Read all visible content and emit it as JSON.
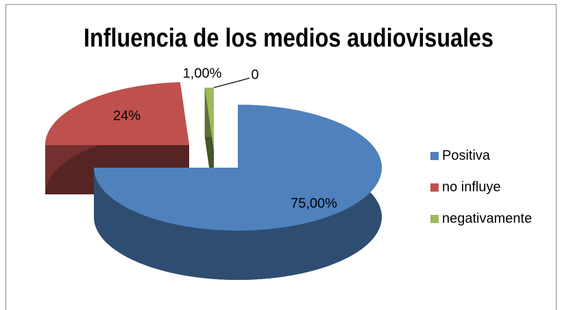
{
  "chart_data": {
    "type": "pie",
    "title": "Influencia de los medios audiovisuales",
    "categories": [
      "Positiva",
      "no influye",
      "negativamente"
    ],
    "values": [
      75,
      24,
      1
    ],
    "value_labels": [
      "75,00%",
      "24%",
      "1,00%"
    ],
    "colors": [
      "#4f81bd",
      "#c0504d",
      "#9bbb59"
    ],
    "annotation": "0",
    "legend": "right"
  }
}
